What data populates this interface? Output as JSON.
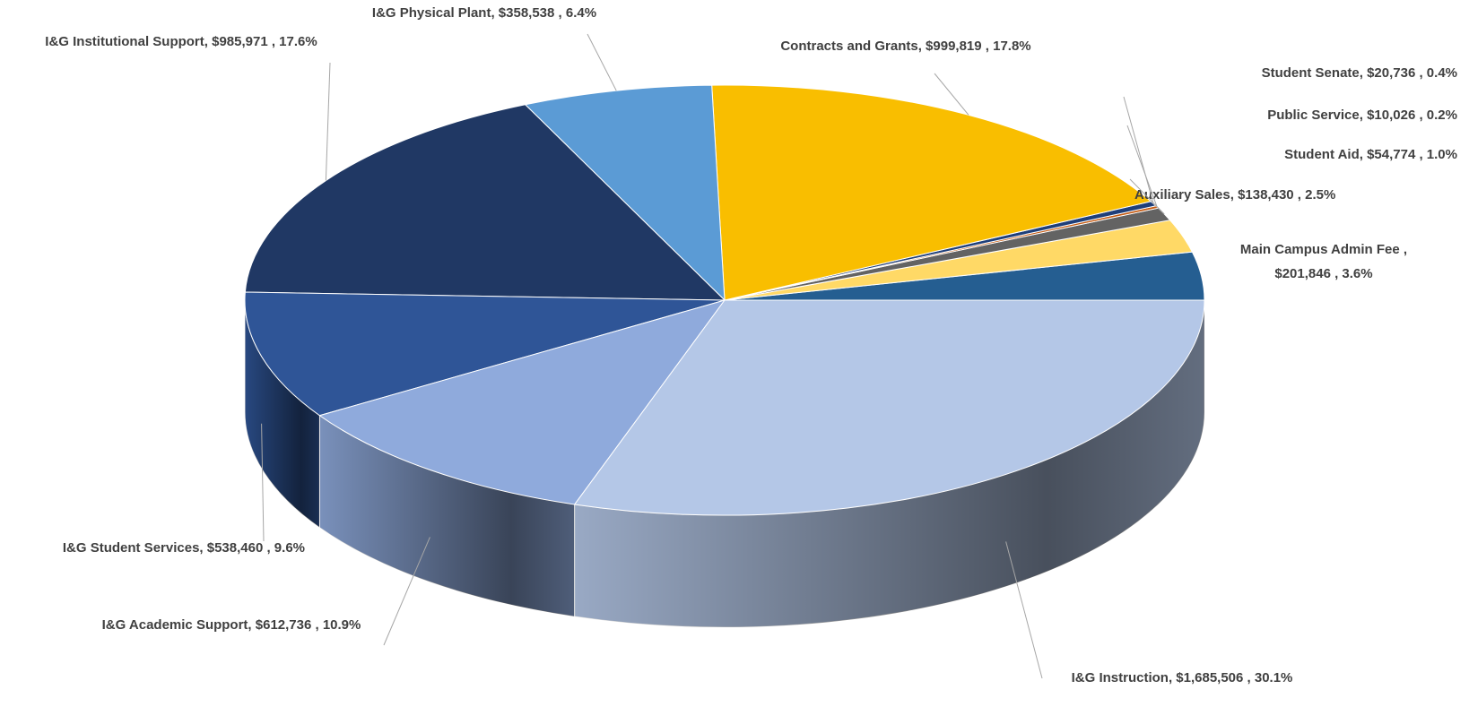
{
  "chart_data": {
    "type": "pie3d",
    "categories": [
      "Main Campus Admin Fee",
      "Auxiliary Sales",
      "Student Aid",
      "Public Service",
      "Student Senate",
      "Contracts and Grants",
      "I&G Physical Plant",
      "I&G Institutional Support",
      "I&G Student Services",
      "I&G Academic Support",
      "I&G Instruction"
    ],
    "values": [
      201846,
      138430,
      54774,
      10026,
      20736,
      999819,
      358538,
      985971,
      538460,
      612736,
      1685506
    ],
    "value_labels": [
      [
        "Main Campus Admin Fee ,",
        "$201,846 , 3.6%"
      ],
      [
        "Auxiliary Sales,  $138,430 , 2.5%"
      ],
      [
        "Student Aid,  $54,774 , 1.0%"
      ],
      [
        "Public Service,  $10,026 , 0.2%"
      ],
      [
        "Student Senate,  $20,736 , 0.4%"
      ],
      [
        "Contracts and Grants,  $999,819 , 17.8%"
      ],
      [
        "I&G Physical Plant,  $358,538 , 6.4%"
      ],
      [
        "I&G Institutional Support,  $985,971 , 17.6%"
      ],
      [
        "I&G Student Services,  $538,460 , 9.6%"
      ],
      [
        "I&G Academic Support,  $612,736 , 10.9%"
      ],
      [
        "I&G Instruction,  $1,685,506 , 30.1%"
      ]
    ],
    "colors": [
      "#255e91",
      "#ffd966",
      "#636363",
      "#c55a11",
      "#1f3f7a",
      "#f9be00",
      "#5b9bd5",
      "#203864",
      "#2f5597",
      "#8faadc",
      "#b4c7e7"
    ]
  }
}
